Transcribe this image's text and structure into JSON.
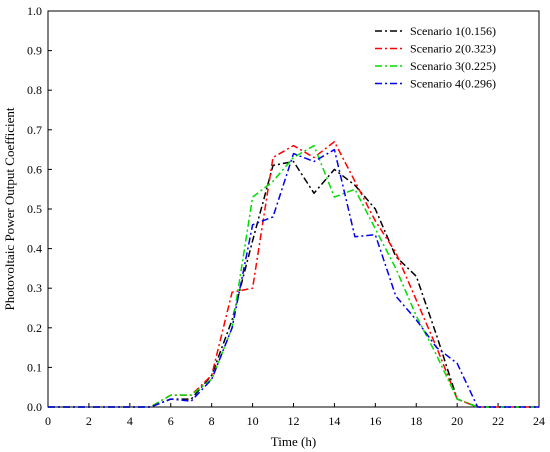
{
  "chart_data": {
    "type": "line",
    "xlabel": "Time (h)",
    "ylabel": "Photovoltaic Power Output Coefficient",
    "xlim": [
      0,
      24
    ],
    "ylim": [
      0,
      1.0
    ],
    "x_ticks": [
      "0",
      "2",
      "4",
      "6",
      "8",
      "10",
      "12",
      "14",
      "16",
      "18",
      "20",
      "22",
      "24"
    ],
    "y_ticks": [
      "0.0",
      "0.1",
      "0.2",
      "0.3",
      "0.4",
      "0.5",
      "0.6",
      "0.7",
      "0.8",
      "0.9",
      "1.0"
    ],
    "grid": false,
    "legend_position": "top-right",
    "series": [
      {
        "name": "Scenario 1(0.156)",
        "color": "#000000",
        "x": [
          0,
          1,
          2,
          3,
          4,
          5,
          6,
          7,
          8,
          9,
          10,
          11,
          12,
          13,
          14,
          15,
          16,
          17,
          18,
          19,
          20,
          21,
          22,
          23,
          24
        ],
        "y": [
          0,
          0,
          0,
          0,
          0,
          0,
          0.02,
          0.02,
          0.08,
          0.22,
          0.42,
          0.61,
          0.62,
          0.54,
          0.6,
          0.56,
          0.5,
          0.38,
          0.33,
          0.18,
          0.02,
          0,
          0,
          0,
          0
        ]
      },
      {
        "name": "Scenario 2(0.323)",
        "color": "#ff0000",
        "x": [
          0,
          1,
          2,
          3,
          4,
          5,
          6,
          7,
          8,
          9,
          10,
          11,
          12,
          13,
          14,
          15,
          16,
          17,
          18,
          19,
          20,
          21,
          22,
          23,
          24
        ],
        "y": [
          0,
          0,
          0,
          0,
          0,
          0,
          0.03,
          0.03,
          0.08,
          0.29,
          0.3,
          0.63,
          0.66,
          0.63,
          0.67,
          0.57,
          0.47,
          0.39,
          0.27,
          0.15,
          0.02,
          0,
          0,
          0,
          0
        ]
      },
      {
        "name": "Scenario 3(0.225)",
        "color": "#00dd00",
        "x": [
          0,
          1,
          2,
          3,
          4,
          5,
          6,
          7,
          8,
          9,
          10,
          11,
          12,
          13,
          14,
          15,
          16,
          17,
          18,
          19,
          20,
          21,
          22,
          23,
          24
        ],
        "y": [
          0,
          0,
          0,
          0,
          0,
          0,
          0.03,
          0.03,
          0.07,
          0.2,
          0.53,
          0.57,
          0.63,
          0.66,
          0.53,
          0.55,
          0.45,
          0.35,
          0.23,
          0.13,
          0.02,
          0,
          0,
          0,
          0
        ]
      },
      {
        "name": "Scenario 4(0.296)",
        "color": "#0000ee",
        "x": [
          0,
          1,
          2,
          3,
          4,
          5,
          6,
          7,
          8,
          9,
          10,
          11,
          12,
          13,
          14,
          15,
          16,
          17,
          18,
          19,
          20,
          21,
          22,
          23,
          24
        ],
        "y": [
          0,
          0,
          0,
          0,
          0,
          0,
          0.02,
          0.015,
          0.07,
          0.2,
          0.46,
          0.48,
          0.64,
          0.62,
          0.65,
          0.43,
          0.435,
          0.28,
          0.22,
          0.15,
          0.11,
          0,
          0,
          0,
          0
        ]
      }
    ]
  }
}
